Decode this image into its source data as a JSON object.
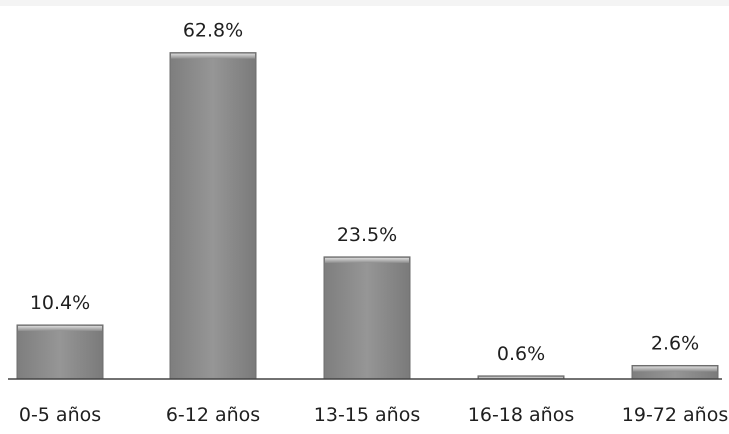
{
  "chart_data": {
    "type": "bar",
    "title": "",
    "xlabel": "",
    "ylabel": "",
    "categories": [
      "0-5 años",
      "6-12 años",
      "13-15 años",
      "16-18 años",
      "19-72 años"
    ],
    "values": [
      10.4,
      62.8,
      23.5,
      0.6,
      2.6
    ],
    "data_labels": [
      "10.4%",
      "62.8%",
      "23.5%",
      "0.6%",
      "2.6%"
    ],
    "ylim": [
      0,
      66
    ],
    "grid": false,
    "legend": "none"
  },
  "colors": {
    "bar_fill": "#8e8e8e",
    "bar_highlight": "#d4d4d4",
    "bar_shadow": "#6d6d6d",
    "axis": "#444444",
    "text": "#1f1f1f"
  }
}
